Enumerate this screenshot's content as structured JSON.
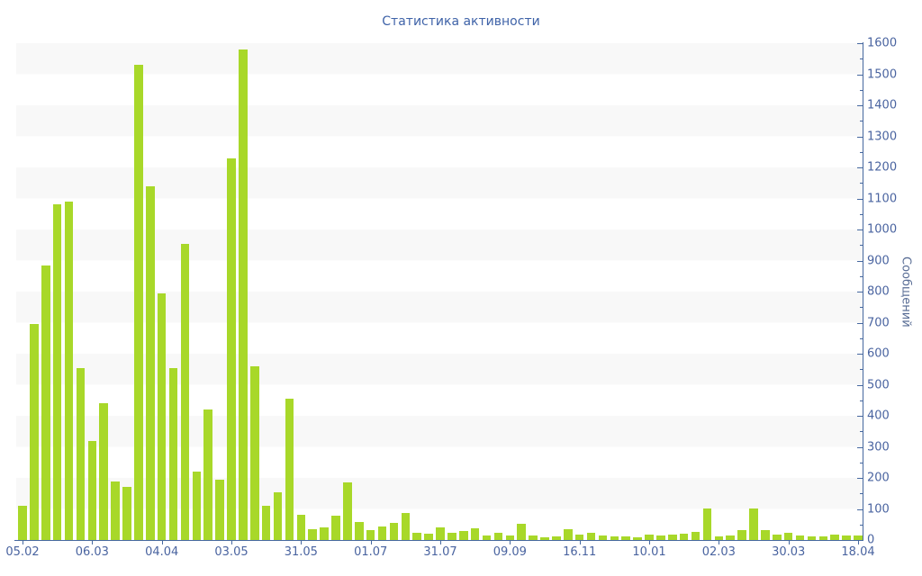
{
  "title": "Статистика активности",
  "colors": {
    "bar": "#a8d829",
    "axis": "#46689f",
    "tick_label": "#4a64a0",
    "title": "#3f63a8",
    "stripe": "#f8f8f8",
    "axis_label": "#5a6e96"
  },
  "y_axis": {
    "label": "Сообщений",
    "min": 0,
    "max": 1600,
    "major_step": 100,
    "minor_step": 50
  },
  "x_axis": {
    "labels": [
      "05.02",
      "06.03",
      "04.04",
      "03.05",
      "31.05",
      "01.07",
      "31.07",
      "09.09",
      "16.11",
      "10.01",
      "02.03",
      "30.03",
      "18.04"
    ],
    "label_every_n_bars": 6
  },
  "chart_data": {
    "type": "bar",
    "title": "Статистика активности",
    "xlabel": "",
    "ylabel": "Сообщений",
    "ylim": [
      0,
      1600
    ],
    "grid": "alternating horizontal bands of 100 units, light gray on odd hundreds",
    "legend": "none",
    "bar_count": 73,
    "x_tick_labels": [
      "05.02",
      "06.03",
      "04.04",
      "03.05",
      "31.05",
      "01.07",
      "31.07",
      "09.09",
      "16.11",
      "10.01",
      "02.03",
      "30.03",
      "18.04"
    ],
    "x_tick_bar_indices": [
      0,
      6,
      12,
      18,
      24,
      30,
      36,
      42,
      48,
      54,
      60,
      66,
      72
    ],
    "values": [
      110,
      695,
      885,
      1080,
      1090,
      555,
      320,
      440,
      190,
      172,
      1530,
      1140,
      795,
      555,
      955,
      220,
      420,
      195,
      1230,
      1580,
      560,
      110,
      155,
      455,
      82,
      34,
      41,
      79,
      186,
      58,
      32,
      43,
      56,
      87,
      24,
      20,
      40,
      23,
      30,
      38,
      16,
      22,
      15,
      52,
      16,
      10,
      11,
      36,
      18,
      23,
      15,
      12,
      12,
      10,
      17,
      16,
      17,
      20,
      27,
      103,
      12,
      14,
      31,
      103,
      31,
      17,
      24,
      14,
      12,
      11,
      17,
      16,
      14
    ]
  }
}
